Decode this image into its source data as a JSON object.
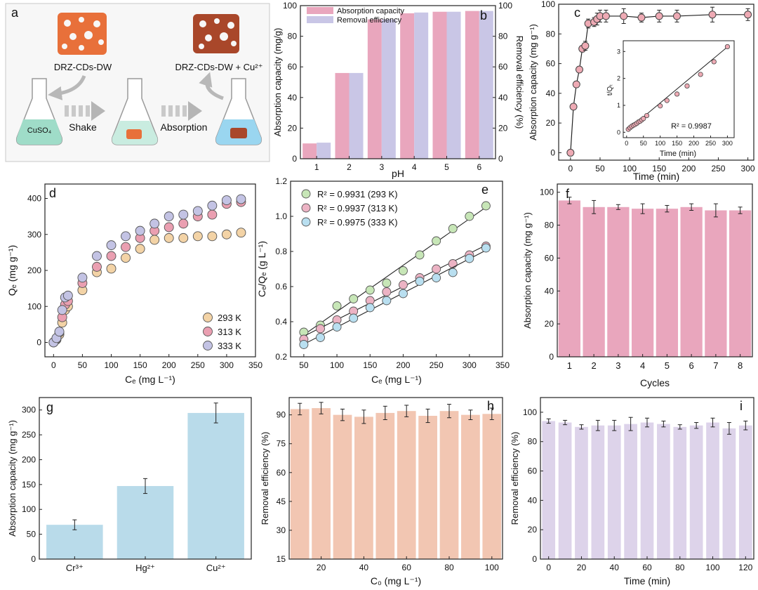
{
  "colors": {
    "pink": "#e9a6bd",
    "lavender": "#c9c6e6",
    "salmon": "#f2c6b2",
    "lilac": "#ddd3ea",
    "lightblue": "#b9dbea",
    "c293": "#f3d3a6",
    "c313": "#ea9fb1",
    "c333": "#c3c3e4",
    "c_green": "#c7e6b7",
    "c_pink": "#ecb3c4",
    "c_blue": "#b9dff0",
    "marker_c": "#eeaab4",
    "flask_liquid": "#9fdcc8",
    "flask_blue": "#9ad6f0",
    "sponge": "#e8703a",
    "sponge_dark": "#a9472a"
  },
  "panel_a": {
    "letter": "a",
    "sponge1_label": "DRZ-CDs-DW",
    "sponge2_label": "DRZ-CDs-DW + Cu²⁺",
    "flask1_label": "CuSO₄",
    "step1": "Shake",
    "step2": "Absorption"
  },
  "chart_data": [
    {
      "panel": "b",
      "type": "bar",
      "xlabel": "pH",
      "ylabel": "Absorption capacity (mg/g)",
      "y2label": "Removal efficiency (%)",
      "categories": [
        "1",
        "2",
        "3",
        "4",
        "5",
        "6"
      ],
      "ylim": [
        0,
        100
      ],
      "y2lim": [
        0,
        100
      ],
      "yticks": [
        "0",
        "20",
        "40",
        "60",
        "80",
        "100"
      ],
      "y2ticks": [
        "0",
        "20",
        "40",
        "60",
        "80",
        "100"
      ],
      "legend_position": "top-left",
      "series": [
        {
          "name": "Absorption capacity",
          "values": [
            10,
            56,
            91,
            95,
            96,
            96.5
          ]
        },
        {
          "name": "Removal efficiency",
          "values": [
            10.5,
            56,
            91,
            95.5,
            96,
            96.5
          ]
        }
      ]
    },
    {
      "panel": "c",
      "type": "scatter",
      "xlabel": "Time (min)",
      "ylabel": "Absorption capacity (mg g⁻¹)",
      "xlim": [
        -20,
        310
      ],
      "ylim": [
        -5,
        100
      ],
      "xticks": [
        "0",
        "50",
        "100",
        "150",
        "200",
        "250",
        "300"
      ],
      "yticks": [
        "0",
        "20",
        "40",
        "60",
        "80",
        "100"
      ],
      "x": [
        0,
        5,
        10,
        15,
        20,
        25,
        30,
        40,
        45,
        50,
        60,
        90,
        120,
        150,
        180,
        240,
        300
      ],
      "y": [
        0,
        31,
        46,
        56,
        70,
        72,
        87,
        88,
        90,
        92,
        92,
        92,
        91,
        92,
        92,
        93,
        93
      ],
      "err": [
        0,
        1,
        2,
        2,
        2,
        3,
        3,
        3,
        4,
        4,
        4,
        5,
        3,
        4,
        4,
        5,
        4
      ],
      "inset": {
        "type": "scatter",
        "xlabel": "Time (min)",
        "ylabel": "t/Qₜ",
        "annotation": "R² = 0.9987",
        "xlim": [
          -10,
          320
        ],
        "ylim": [
          -0.2,
          3.4
        ],
        "xticks": [
          "0",
          "50",
          "100",
          "150",
          "200",
          "250",
          "300"
        ],
        "yticks": [
          "0",
          "1",
          "2",
          "3"
        ],
        "x": [
          5,
          10,
          15,
          20,
          25,
          30,
          35,
          40,
          45,
          50,
          60,
          100,
          120,
          150,
          180,
          220,
          260,
          300
        ],
        "y": [
          0.11,
          0.17,
          0.22,
          0.26,
          0.29,
          0.33,
          0.38,
          0.41,
          0.46,
          0.51,
          0.62,
          0.98,
          1.18,
          1.42,
          1.72,
          2.15,
          2.62,
          3.18
        ]
      }
    },
    {
      "panel": "d",
      "type": "scatter",
      "xlabel": "Cₑ (mg L⁻¹)",
      "ylabel": "Qₑ (mg g⁻¹)",
      "xlim": [
        -15,
        350
      ],
      "ylim": [
        -40,
        440
      ],
      "xticks": [
        "0",
        "50",
        "100",
        "150",
        "200",
        "250",
        "300",
        "350"
      ],
      "yticks": [
        "0",
        "100",
        "200",
        "300",
        "400"
      ],
      "legend_position": "bottom-right",
      "x": [
        0,
        5,
        10,
        15,
        20,
        25,
        50,
        75,
        100,
        125,
        150,
        175,
        200,
        225,
        250,
        275,
        300,
        325
      ],
      "series": [
        {
          "name": "293 K",
          "values": [
            0,
            8,
            22,
            55,
            90,
            100,
            145,
            195,
            205,
            235,
            260,
            285,
            290,
            290,
            295,
            295,
            300,
            305
          ]
        },
        {
          "name": "313 K",
          "values": [
            0,
            10,
            28,
            70,
            105,
            115,
            165,
            210,
            240,
            265,
            290,
            310,
            320,
            330,
            350,
            355,
            385,
            390
          ]
        },
        {
          "name": "333 K",
          "values": [
            0,
            12,
            30,
            90,
            125,
            130,
            180,
            240,
            270,
            295,
            310,
            330,
            350,
            355,
            365,
            380,
            395,
            398
          ]
        }
      ]
    },
    {
      "panel": "e",
      "type": "scatter",
      "xlabel": "Cₑ (mg L⁻¹)",
      "ylabel": "Cₑ/Qₑ (g L⁻¹)",
      "xlim": [
        30,
        350
      ],
      "ylim": [
        0.2,
        1.2
      ],
      "xticks": [
        "50",
        "100",
        "150",
        "200",
        "250",
        "300",
        "350"
      ],
      "yticks": [
        "0.2",
        "0.4",
        "0.6",
        "0.8",
        "1.0",
        "1.2"
      ],
      "legend_position": "top-left",
      "x": [
        50,
        75,
        100,
        125,
        150,
        175,
        200,
        225,
        250,
        275,
        300,
        325
      ],
      "series": [
        {
          "name": "R² = 0.9931 (293 K)",
          "values": [
            0.34,
            0.38,
            0.49,
            0.53,
            0.58,
            0.62,
            0.69,
            0.78,
            0.86,
            0.93,
            1.0,
            1.06
          ]
        },
        {
          "name": "R² = 0.9937 (313 K)",
          "values": [
            0.3,
            0.36,
            0.41,
            0.46,
            0.52,
            0.57,
            0.61,
            0.65,
            0.7,
            0.73,
            0.78,
            0.83
          ]
        },
        {
          "name": "R² = 0.9975 (333 K)",
          "values": [
            0.27,
            0.31,
            0.37,
            0.42,
            0.48,
            0.52,
            0.56,
            0.63,
            0.65,
            0.68,
            0.76,
            0.82
          ]
        }
      ]
    },
    {
      "panel": "f",
      "type": "bar",
      "xlabel": "Cycles",
      "ylabel": "Absorption capacity (mg g⁻¹)",
      "categories": [
        "1",
        "2",
        "3",
        "4",
        "5",
        "6",
        "7",
        "8"
      ],
      "ylim": [
        0,
        105
      ],
      "yticks": [
        "0",
        "20",
        "40",
        "60",
        "80",
        "100"
      ],
      "values": [
        95,
        91,
        91,
        90,
        90,
        91,
        89,
        89
      ],
      "err": [
        2,
        4,
        1.5,
        3,
        2,
        2,
        4,
        2
      ]
    },
    {
      "panel": "g",
      "type": "bar",
      "xlabel": "",
      "ylabel": "Absorption capacity (mg g⁻¹)",
      "categories": [
        "Cr³⁺",
        "Hg²⁺",
        "Cu²⁺"
      ],
      "ylim": [
        0,
        325
      ],
      "yticks": [
        "0",
        "50",
        "100",
        "150",
        "200",
        "250",
        "300"
      ],
      "values": [
        69,
        147,
        294
      ],
      "err": [
        10,
        15,
        20
      ]
    },
    {
      "panel": "h",
      "type": "bar",
      "xlabel": "C₀ (mg L⁻¹)",
      "ylabel": "Removal efficiency (%)",
      "x": [
        10,
        20,
        30,
        40,
        50,
        60,
        70,
        80,
        90,
        100
      ],
      "xlim": [
        5,
        105
      ],
      "ylim": [
        15,
        99
      ],
      "xticks": [
        "20",
        "40",
        "60",
        "80",
        "100"
      ],
      "yticks": [
        "15",
        "30",
        "45",
        "60",
        "75",
        "90"
      ],
      "values": [
        93,
        93.5,
        90,
        89,
        91,
        92,
        89.5,
        92,
        90,
        90.5
      ],
      "err": [
        3,
        3,
        3,
        3.5,
        3.5,
        3,
        3.5,
        3.5,
        2.5,
        3
      ]
    },
    {
      "panel": "i",
      "type": "bar",
      "xlabel": "Time (min)",
      "ylabel": "Removal efficiency (%)",
      "x": [
        0,
        10,
        20,
        30,
        40,
        50,
        60,
        70,
        80,
        90,
        100,
        110,
        120
      ],
      "xlim": [
        -5,
        125
      ],
      "ylim": [
        0,
        110
      ],
      "xticks": [
        "0",
        "20",
        "40",
        "60",
        "80",
        "100",
        "120"
      ],
      "yticks": [
        "0",
        "20",
        "40",
        "60",
        "80",
        "100"
      ],
      "values": [
        94,
        93,
        90,
        91,
        91,
        92,
        93,
        92,
        90,
        91,
        93,
        89,
        91
      ],
      "err": [
        1.5,
        1.5,
        1.5,
        3.5,
        3.5,
        4.5,
        3,
        2,
        1.5,
        2,
        3,
        4,
        3
      ]
    }
  ]
}
